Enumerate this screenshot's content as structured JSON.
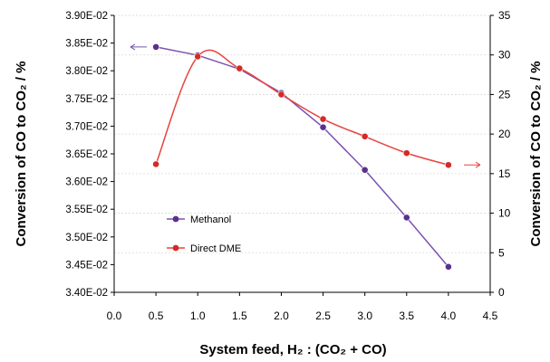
{
  "chart_data": {
    "type": "line",
    "xlabel": "System feed,  H₂ : (CO₂ + CO)",
    "ylabel_left": "Conversion of CO to CO₂  /  %",
    "ylabel_right": "Conversion of CO to CO₂  /  %",
    "x_axis": {
      "min": 0,
      "max": 4.5,
      "step": 0.5,
      "tick_labels": [
        "0.0",
        "0.5",
        "1.0",
        "1.5",
        "2.0",
        "2.5",
        "3.0",
        "3.5",
        "4.0",
        "4.5"
      ]
    },
    "y_left": {
      "min": 0.034,
      "max": 0.039,
      "step": 0.0005,
      "tick_labels": [
        "3.40E-02",
        "3.45E-02",
        "3.50E-02",
        "3.55E-02",
        "3.60E-02",
        "3.65E-02",
        "3.70E-02",
        "3.75E-02",
        "3.80E-02",
        "3.85E-02",
        "3.90E-02"
      ]
    },
    "y_right": {
      "min": 0,
      "max": 35,
      "step": 5,
      "tick_labels": [
        "0",
        "5",
        "10",
        "15",
        "20",
        "25",
        "30",
        "35"
      ]
    },
    "grid": "horizontal",
    "legend_position": "lower-left",
    "series": [
      {
        "name": "Methanol",
        "axis": "left",
        "color": "#7b52b0",
        "marker_color": "#5b2f8f",
        "x": [
          0.5,
          1.0,
          1.5,
          2.0,
          2.5,
          3.0,
          3.5,
          4.0
        ],
        "y": [
          0.03843,
          0.03828,
          0.03803,
          0.0376,
          0.03698,
          0.03621,
          0.03535,
          0.03446
        ]
      },
      {
        "name": "Direct DME",
        "axis": "right",
        "color": "#e8433f",
        "marker_color": "#d42a26",
        "x": [
          0.5,
          1.0,
          1.5,
          2.0,
          2.5,
          3.0,
          3.5,
          4.0
        ],
        "y": [
          16.2,
          29.8,
          28.3,
          25.0,
          21.9,
          19.7,
          17.6,
          16.1
        ]
      }
    ],
    "left_arrow_color": "#7b52b0",
    "right_arrow_color": "#e8433f"
  }
}
